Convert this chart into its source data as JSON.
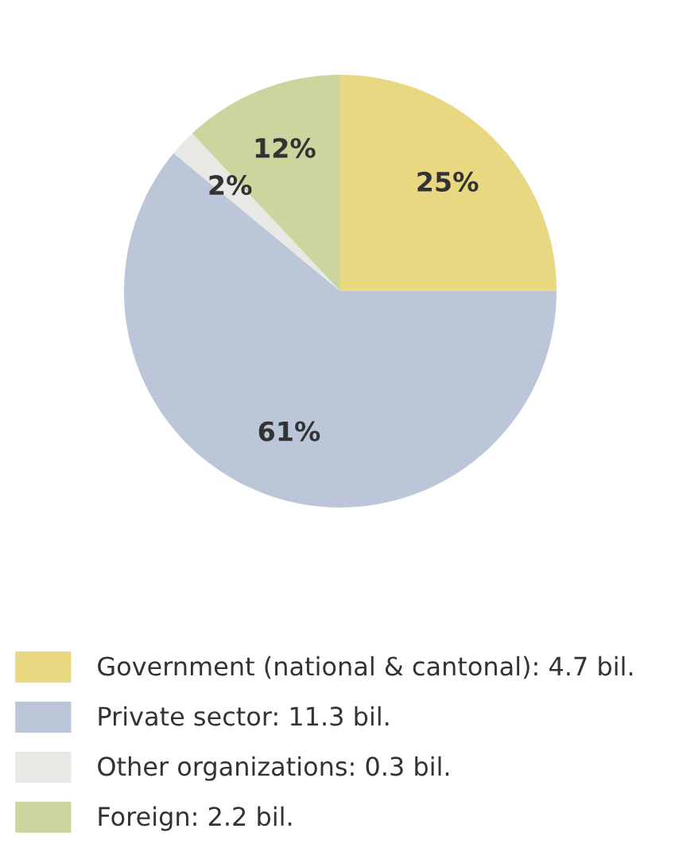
{
  "chart_data": {
    "type": "pie",
    "categories": [
      "Government (national & cantonal): 4.7 bil.",
      "Private sector: 11.3 bil.",
      "Other organizations: 0.3 bil.",
      "Foreign: 2.2 bil."
    ],
    "values": [
      25,
      61,
      2,
      12
    ],
    "value_labels": [
      "25%",
      "61%",
      "2%",
      "12%"
    ],
    "colors": [
      "#e8d882",
      "#bcc6d9",
      "#e8e8e4",
      "#ccd59e"
    ],
    "legend": "bottom"
  }
}
